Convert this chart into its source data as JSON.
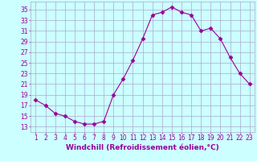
{
  "x": [
    1,
    2,
    3,
    4,
    5,
    6,
    7,
    8,
    9,
    10,
    11,
    12,
    13,
    14,
    15,
    16,
    17,
    18,
    19,
    20,
    21,
    22,
    23
  ],
  "y": [
    18,
    17,
    15.5,
    15,
    14,
    13.5,
    13.5,
    14,
    19,
    22,
    25.5,
    29.5,
    34,
    34.5,
    35.5,
    34.5,
    34,
    31,
    31.5,
    29.5,
    26,
    23,
    21
  ],
  "line_color": "#990099",
  "marker": "D",
  "marker_size": 2.5,
  "bg_color": "#ccffff",
  "grid_color": "#aaaacc",
  "xlabel": "Windchill (Refroidissement éolien,°C)",
  "xlabel_color": "#990099",
  "xlim": [
    0.5,
    23.5
  ],
  "ylim": [
    12,
    36.5
  ],
  "yticks": [
    13,
    15,
    17,
    19,
    21,
    23,
    25,
    27,
    29,
    31,
    33,
    35
  ],
  "xticks": [
    1,
    2,
    3,
    4,
    5,
    6,
    7,
    8,
    9,
    10,
    11,
    12,
    13,
    14,
    15,
    16,
    17,
    18,
    19,
    20,
    21,
    22,
    23
  ],
  "tick_color": "#990099",
  "tick_fontsize": 5.5,
  "xlabel_fontsize": 6.5
}
